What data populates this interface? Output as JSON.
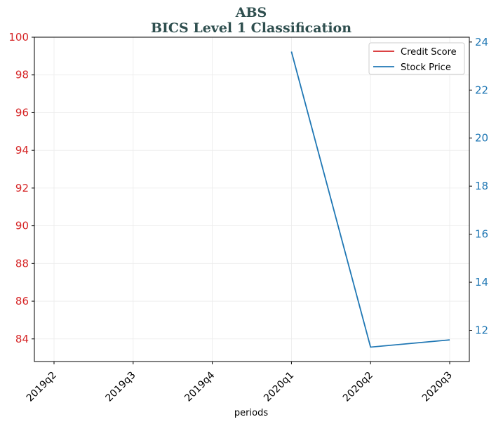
{
  "chart_data": {
    "type": "line",
    "title": "ABS",
    "subtitle": "BICS Level 1 Classification",
    "xlabel": "periods",
    "ylabel_left": "",
    "ylabel_right": "",
    "categories": [
      "2019q2",
      "2019q3",
      "2019q4",
      "2020q1",
      "2020q2",
      "2020q3"
    ],
    "left_axis": {
      "ylim": [
        82.8,
        100
      ],
      "ticks": [
        84,
        86,
        88,
        90,
        92,
        94,
        96,
        98,
        100
      ],
      "color": "#d62728"
    },
    "right_axis": {
      "ylim": [
        10.7,
        24.2
      ],
      "ticks": [
        12,
        14,
        16,
        18,
        20,
        22,
        24
      ],
      "color": "#1f77b4"
    },
    "series": [
      {
        "name": "Credit Score",
        "axis": "left",
        "color": "#d62728",
        "values": [
          null,
          null,
          null,
          null,
          null,
          null
        ]
      },
      {
        "name": "Stock Price",
        "axis": "right",
        "color": "#1f77b4",
        "values": [
          null,
          null,
          null,
          23.6,
          11.3,
          11.6
        ]
      }
    ],
    "grid": true,
    "legend_position": "top-right"
  }
}
